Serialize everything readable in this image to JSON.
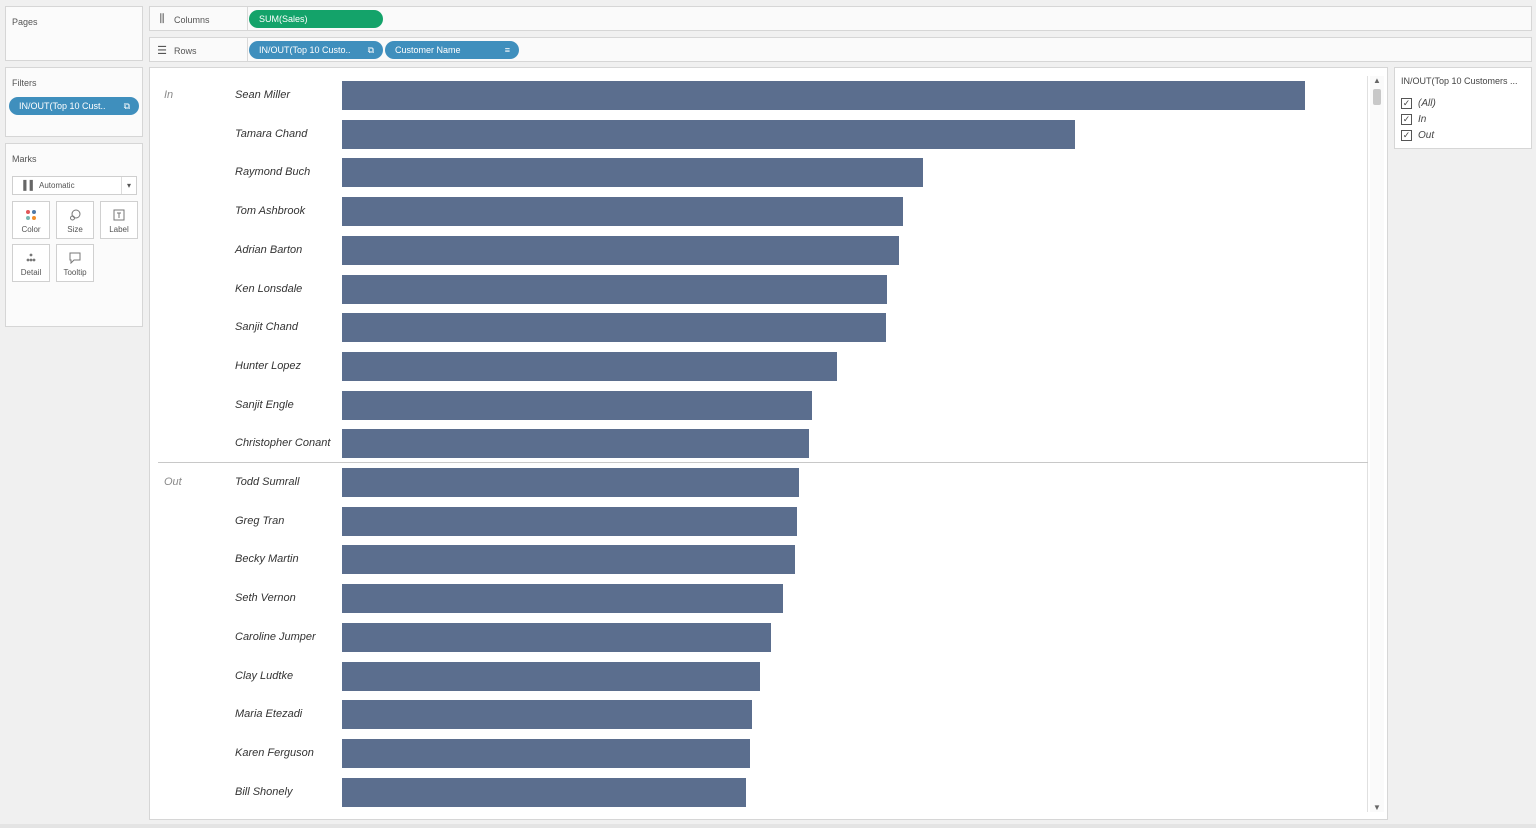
{
  "panels": {
    "pages_title": "Pages",
    "filters_title": "Filters",
    "marks_title": "Marks"
  },
  "filters": {
    "pill_label": "IN/OUT(Top 10 Cust..",
    "pill_icon": "link-icon"
  },
  "marks": {
    "type_value": "Automatic",
    "type_icon": "bar-chart-icon",
    "buttons": [
      {
        "label": "Color",
        "icon": "color-dots-icon"
      },
      {
        "label": "Size",
        "icon": "size-icon"
      },
      {
        "label": "Label",
        "icon": "label-icon"
      },
      {
        "label": "Detail",
        "icon": "detail-icon"
      },
      {
        "label": "Tooltip",
        "icon": "tooltip-icon"
      }
    ]
  },
  "shelves": {
    "columns_label": "Columns",
    "columns_pill": "SUM(Sales)",
    "rows_label": "Rows",
    "rows_pills": [
      "IN/OUT(Top 10 Custo..",
      "Customer Name"
    ]
  },
  "colors": {
    "bar": "#5b6e8e",
    "measure_pill": "#14a36a",
    "dimension_pill": "#3f8fbd"
  },
  "legend": {
    "title": "IN/OUT(Top 10 Customers ...",
    "items": [
      {
        "label": "(All)",
        "checked": true
      },
      {
        "label": "In",
        "checked": true
      },
      {
        "label": "Out",
        "checked": true
      }
    ]
  },
  "chart_data": {
    "type": "bar",
    "orientation": "horizontal",
    "groups": [
      "In",
      "Out"
    ],
    "categories": [
      "Sean Miller",
      "Tamara Chand",
      "Raymond Buch",
      "Tom Ashbrook",
      "Adrian Barton",
      "Ken Lonsdale",
      "Sanjit Chand",
      "Hunter Lopez",
      "Sanjit Engle",
      "Christopher Conant",
      "Todd Sumrall",
      "Greg Tran",
      "Becky Martin",
      "Seth Vernon",
      "Caroline Jumper",
      "Clay Ludtke",
      "Maria Etezadi",
      "Karen Ferguson",
      "Bill Shonely"
    ],
    "category_group": [
      "In",
      "In",
      "In",
      "In",
      "In",
      "In",
      "In",
      "In",
      "In",
      "In",
      "Out",
      "Out",
      "Out",
      "Out",
      "Out",
      "Out",
      "Out",
      "Out",
      "Out"
    ],
    "values": [
      25043,
      19052,
      15117,
      14596,
      14474,
      14175,
      14142,
      12873,
      12209,
      12129,
      11892,
      11820,
      11790,
      11470,
      11165,
      10880,
      10663,
      10604,
      10500
    ],
    "xlim": [
      0,
      26000
    ],
    "ylabel": "Customer Name",
    "grid": false
  }
}
